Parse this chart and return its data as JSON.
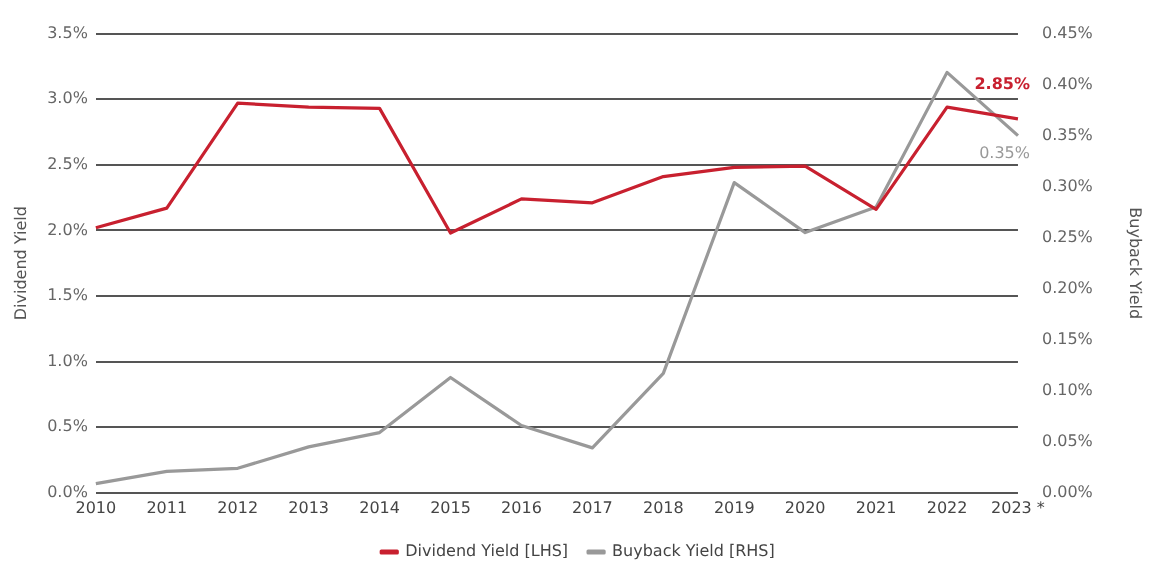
{
  "chart_data": {
    "type": "line",
    "ylabel": "Dividend Yield",
    "y2label": "Buyback Yield",
    "categories": [
      "2010",
      "2011",
      "2012",
      "2013",
      "2014",
      "2015",
      "2016",
      "2017",
      "2018",
      "2019",
      "2020",
      "2021",
      "2022",
      "2023 *"
    ],
    "series": [
      {
        "name": "Dividend Yield [LHS]",
        "color": "#c8202f",
        "values": [
          2.02,
          2.17,
          2.97,
          2.94,
          2.93,
          1.98,
          2.24,
          2.21,
          2.41,
          2.48,
          2.49,
          2.16,
          2.94,
          2.85
        ],
        "value_labels": [
          null,
          null,
          null,
          null,
          null,
          null,
          null,
          null,
          null,
          null,
          null,
          null,
          null,
          "2.85%"
        ]
      },
      {
        "name": "Buyback Yield [RHS]",
        "color": "#999999",
        "axis": "y2",
        "values": [
          0.009,
          0.021,
          0.024,
          0.045,
          0.059,
          0.113,
          0.066,
          0.044,
          0.117,
          0.304,
          0.255,
          0.28,
          0.412,
          0.35
        ],
        "value_labels": [
          null,
          null,
          null,
          null,
          null,
          null,
          null,
          null,
          null,
          null,
          null,
          null,
          null,
          "0.35%"
        ]
      }
    ],
    "ylim": [
      0,
      3.5
    ],
    "yticks": [
      {
        "value": 0,
        "label": "0.0%"
      },
      {
        "value": 0.5,
        "label": "0.5%"
      },
      {
        "value": 1,
        "label": "1.0%"
      },
      {
        "value": 1.5,
        "label": "1.5%"
      },
      {
        "value": 2,
        "label": "2.0%"
      },
      {
        "value": 2.5,
        "label": "2.5%"
      },
      {
        "value": 3,
        "label": "3.0%"
      },
      {
        "value": 3.5,
        "label": "3.5%"
      }
    ],
    "y2lim": [
      0,
      0.45
    ],
    "y2ticks": [
      {
        "value": 0,
        "label": "0.00%"
      },
      {
        "value": 0.05,
        "label": "0.05%"
      },
      {
        "value": 0.1,
        "label": "0.10%"
      },
      {
        "value": 0.15,
        "label": "0.15%"
      },
      {
        "value": 0.2,
        "label": "0.20%"
      },
      {
        "value": 0.25,
        "label": "0.25%"
      },
      {
        "value": 0.3,
        "label": "0.30%"
      },
      {
        "value": 0.35,
        "label": "0.35%"
      },
      {
        "value": 0.4,
        "label": "0.40%"
      },
      {
        "value": 0.45,
        "label": "0.45%"
      }
    ],
    "grid": "y",
    "legend": "bottom",
    "marker": "none",
    "line_style": "solid"
  }
}
